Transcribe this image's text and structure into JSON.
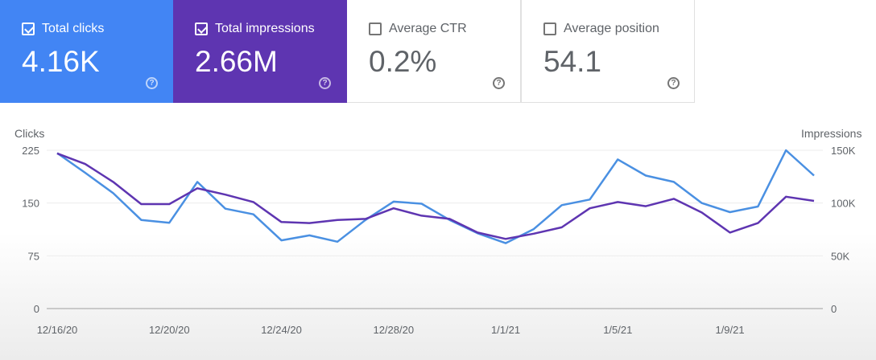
{
  "metrics": [
    {
      "label": "Total clicks",
      "value": "4.16K",
      "checked": true,
      "bg": "#4285f4"
    },
    {
      "label": "Total impressions",
      "value": "2.66M",
      "checked": true,
      "bg": "#5e35b1"
    },
    {
      "label": "Average CTR",
      "value": "0.2%",
      "checked": false,
      "bg": "#ffffff"
    },
    {
      "label": "Average position",
      "value": "54.1",
      "checked": false,
      "bg": "#ffffff"
    }
  ],
  "help_glyph": "?",
  "chart_data": {
    "type": "line",
    "ylabel_left": "Clicks",
    "ylabel_right": "Impressions",
    "y_left_ticks": [
      "0",
      "75",
      "150",
      "225"
    ],
    "y_left_range": [
      0,
      225
    ],
    "y_right_ticks": [
      "0",
      "50K",
      "100K",
      "150K"
    ],
    "y_right_range": [
      0,
      150000
    ],
    "x_tick_labels": [
      "12/16/20",
      "12/20/20",
      "12/24/20",
      "12/28/20",
      "1/1/21",
      "1/5/21",
      "1/9/21"
    ],
    "x_dates": [
      "12/16/20",
      "12/17/20",
      "12/18/20",
      "12/19/20",
      "12/20/20",
      "12/21/20",
      "12/22/20",
      "12/23/20",
      "12/24/20",
      "12/25/20",
      "12/26/20",
      "12/27/20",
      "12/28/20",
      "12/29/20",
      "12/30/20",
      "12/31/20",
      "1/1/21",
      "1/2/21",
      "1/3/21",
      "1/4/21",
      "1/5/21",
      "1/6/21",
      "1/7/21",
      "1/8/21",
      "1/9/21",
      "1/10/21",
      "1/11/21",
      "1/12/21"
    ],
    "grid": true,
    "series": [
      {
        "name": "Clicks",
        "axis": "left",
        "color": "#4a90e2",
        "values": [
          221,
          193,
          164,
          126,
          122,
          180,
          142,
          134,
          97,
          104,
          95,
          126,
          152,
          149,
          126,
          107,
          93,
          113,
          147,
          155,
          212,
          189,
          180,
          150,
          137,
          145,
          225,
          189
        ]
      },
      {
        "name": "Impressions",
        "axis": "right",
        "color": "#5e35b1",
        "values": [
          147000,
          137000,
          120000,
          99000,
          99000,
          114000,
          108000,
          101000,
          82000,
          81000,
          84000,
          85000,
          95000,
          88000,
          85000,
          72000,
          66000,
          71000,
          77000,
          95000,
          101000,
          97000,
          104000,
          91000,
          72000,
          81000,
          106000,
          102000
        ]
      }
    ]
  }
}
